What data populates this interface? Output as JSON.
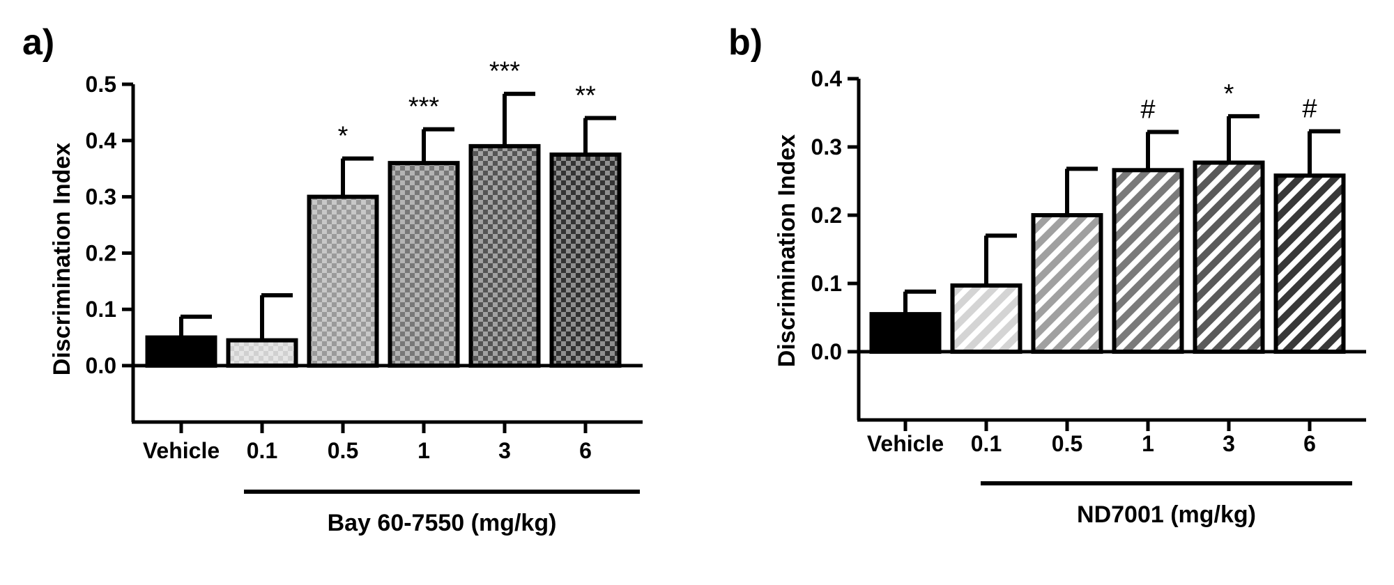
{
  "chart_data": [
    {
      "panel": "a)",
      "type": "bar",
      "ylabel": "Discrimination Index",
      "group_label": "Bay 60-7550 (mg/kg)",
      "categories": [
        "Vehicle",
        "0.1",
        "0.5",
        "1",
        "3",
        "6"
      ],
      "values": [
        0.05,
        0.045,
        0.3,
        0.36,
        0.39,
        0.375
      ],
      "errors": [
        0.037,
        0.08,
        0.068,
        0.06,
        0.093,
        0.065
      ],
      "significance": [
        "",
        "",
        "*",
        "***",
        "***",
        "**"
      ],
      "ylim": [
        -0.1,
        0.5
      ],
      "yticks": [
        "0.0",
        "0.1",
        "0.2",
        "0.3",
        "0.4",
        "0.5"
      ],
      "pattern": "checker",
      "fills": [
        "#000000",
        "#d0d0d0",
        "#9a9a9a",
        "#777777",
        "#555555",
        "#333333"
      ]
    },
    {
      "panel": "b)",
      "type": "bar",
      "ylabel": "Discrimination Index",
      "group_label": "ND7001 (mg/kg)",
      "categories": [
        "Vehicle",
        "0.1",
        "0.5",
        "1",
        "3",
        "6"
      ],
      "values": [
        0.055,
        0.097,
        0.2,
        0.266,
        0.277,
        0.258
      ],
      "errors": [
        0.033,
        0.073,
        0.068,
        0.056,
        0.068,
        0.065
      ],
      "significance": [
        "",
        "",
        "",
        "#",
        "*",
        "#"
      ],
      "ylim": [
        -0.1,
        0.4
      ],
      "yticks": [
        "0.0",
        "0.1",
        "0.2",
        "0.3",
        "0.4"
      ],
      "pattern": "stripes",
      "fills": [
        "#000000",
        "#d4d4d4",
        "#a0a0a0",
        "#7a7a7a",
        "#5a5a5a",
        "#383838"
      ]
    }
  ]
}
